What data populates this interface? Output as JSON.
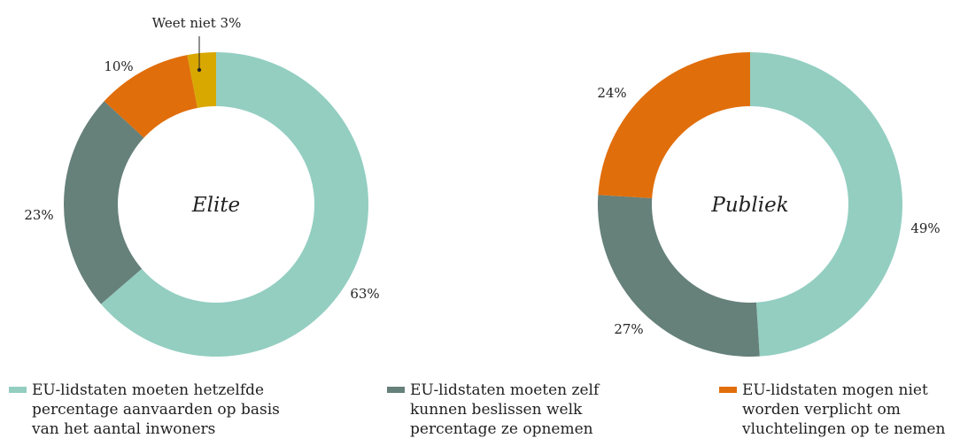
{
  "chart_data": [
    {
      "type": "donut",
      "center_label": "Elite",
      "slices": [
        {
          "category": "EU-lidstaten moeten hetzelfde percentage aanvaarden op basis van het aantal inwoners",
          "value": 63,
          "label": "63%",
          "color": "#93CEC1"
        },
        {
          "category": "EU-lidstaten moeten zelf kunnen beslissen welk percentage ze opnemen",
          "value": 23,
          "label": "23%",
          "color": "#66807A"
        },
        {
          "category": "EU-lidstaten mogen niet worden verplicht om vluchtelingen op te nemen",
          "value": 10,
          "label": "10%",
          "color": "#E06E0B"
        },
        {
          "category": "Weet niet",
          "value": 3,
          "label": "Weet niet 3%",
          "color": "#D9A800"
        }
      ]
    },
    {
      "type": "donut",
      "center_label": "Publiek",
      "slices": [
        {
          "category": "EU-lidstaten moeten hetzelfde percentage aanvaarden op basis van het aantal inwoners",
          "value": 49,
          "label": "49%",
          "color": "#93CEC1"
        },
        {
          "category": "EU-lidstaten moeten zelf kunnen beslissen welk percentage ze opnemen",
          "value": 27,
          "label": "27%",
          "color": "#66807A"
        },
        {
          "category": "EU-lidstaten mogen niet worden verplicht om vluchtelingen op te nemen",
          "value": 24,
          "label": "24%",
          "color": "#E06E0B"
        }
      ]
    }
  ],
  "legend": [
    {
      "text": "EU-lidstaten moeten hetzelfde\npercentage aanvaarden op basis\nvan het aantal inwoners",
      "color": "#93CEC1"
    },
    {
      "text": "EU-lidstaten moeten zelf\nkunnen beslissen welk\npercentage ze opnemen",
      "color": "#66807A"
    },
    {
      "text": "EU-lidstaten mogen niet\nworden verplicht om\nvluchtelingen op te nemen",
      "color": "#E06E0B"
    }
  ]
}
